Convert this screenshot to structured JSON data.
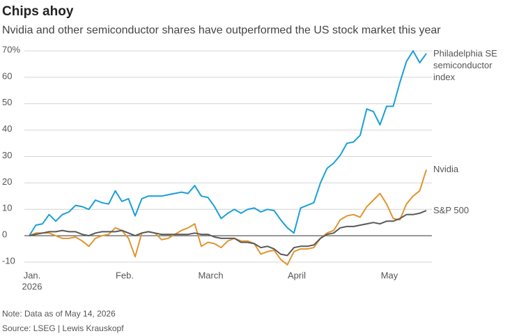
{
  "chart_data": {
    "type": "line",
    "title": "Chips ahoy",
    "subtitle": "Nvidia and other semiconductor shares have outperformed the US stock market this year",
    "note": "Note: Data as of May 14, 2026",
    "source": "Source: LSEG | Lewis Krauskopf",
    "x_year_label": "2026",
    "categories": [
      "Jan.",
      null,
      null,
      null,
      null,
      null,
      null,
      null,
      null,
      null,
      null,
      null,
      null,
      null,
      "Feb.",
      null,
      null,
      null,
      null,
      null,
      null,
      null,
      null,
      null,
      null,
      null,
      null,
      "March",
      null,
      null,
      null,
      null,
      null,
      null,
      null,
      null,
      null,
      null,
      null,
      null,
      "April",
      null,
      null,
      null,
      null,
      null,
      null,
      null,
      null,
      null,
      null,
      null,
      null,
      null,
      "May",
      null,
      null,
      null,
      null,
      null,
      null
    ],
    "series": [
      {
        "name": "Philadelphia SE semiconductor index",
        "color": "#1a9fd6",
        "values": [
          0,
          4,
          4.5,
          8,
          5.5,
          8,
          9,
          11.5,
          11,
          10,
          13.5,
          12.5,
          12,
          17,
          13,
          14,
          7.5,
          14,
          15,
          15,
          15,
          15.5,
          16,
          16.5,
          16,
          19,
          15,
          14.5,
          11,
          6.5,
          8.5,
          10,
          8.5,
          10,
          10.5,
          9,
          10,
          9.5,
          6,
          3,
          1,
          10.5,
          11.5,
          12.5,
          20,
          25.5,
          27.5,
          30.5,
          35,
          35.5,
          38,
          48,
          47,
          42,
          49,
          49,
          58,
          66,
          70,
          65.5,
          69
        ]
      },
      {
        "name": "Nvidia",
        "color": "#e0952f",
        "values": [
          0,
          1,
          1,
          1,
          0,
          -1,
          -1,
          -0.5,
          -2,
          -4,
          -1,
          0,
          0.5,
          3,
          2,
          -1,
          -8,
          1,
          1.5,
          1,
          -1.5,
          -1,
          0.5,
          2,
          3,
          4.5,
          -4,
          -2.5,
          -3,
          -4.5,
          -2,
          -1,
          -2,
          -2,
          -3,
          -7,
          -6,
          -5.5,
          -9,
          -11,
          -6,
          -5,
          -5,
          -4.5,
          -1,
          1,
          2,
          6,
          7.5,
          8,
          7,
          11,
          13.5,
          16,
          12,
          6.5,
          6,
          12,
          15,
          17,
          25
        ]
      },
      {
        "name": "S&P 500",
        "color": "#595959",
        "values": [
          0,
          0.5,
          1,
          1.5,
          1.5,
          2,
          1.5,
          1.5,
          0.5,
          0,
          1,
          1.5,
          1.5,
          1.5,
          2,
          1,
          0,
          1,
          1.5,
          1,
          0.5,
          0.5,
          0.5,
          0.5,
          0.5,
          1,
          0.5,
          0.5,
          -0.5,
          -1,
          -1,
          -1,
          -2.5,
          -2.5,
          -3,
          -4.5,
          -4,
          -5,
          -7,
          -7.5,
          -4.5,
          -4,
          -4,
          -3.5,
          -1,
          0.5,
          1,
          3,
          3.5,
          3.5,
          4,
          4.5,
          5,
          4.5,
          5.5,
          5.5,
          6.5,
          8,
          8,
          8.5,
          9.5
        ]
      }
    ],
    "ylim": [
      -10,
      70
    ],
    "yticks": [
      {
        "value": 70,
        "label": "70%"
      },
      60,
      50,
      40,
      30,
      20,
      10,
      0,
      -10
    ],
    "grid": true
  }
}
